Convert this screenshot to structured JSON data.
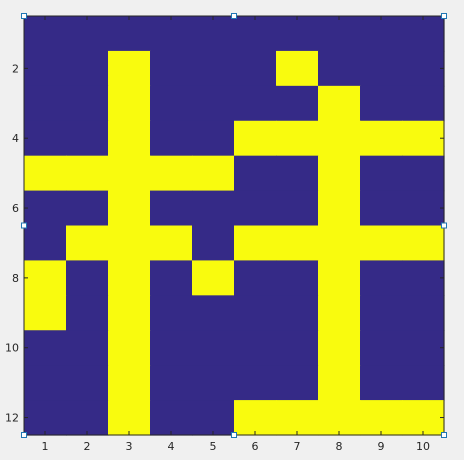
{
  "chart_data": {
    "type": "heatmap",
    "x": [
      1,
      2,
      3,
      4,
      5,
      6,
      7,
      8,
      9,
      10
    ],
    "y": [
      1,
      2,
      3,
      4,
      5,
      6,
      7,
      8,
      9,
      10,
      11,
      12
    ],
    "xlim": [
      0.5,
      10.5
    ],
    "ylim": [
      0.5,
      12.5
    ],
    "y_direction": "reverse",
    "x_ticks": [
      "1",
      "2",
      "3",
      "4",
      "5",
      "6",
      "7",
      "8",
      "9",
      "10"
    ],
    "y_ticks": [
      "2",
      "4",
      "6",
      "8",
      "10",
      "12"
    ],
    "colors": {
      "0": "#352a87",
      "1": "#f9fb0e",
      "axis": "#262626",
      "handle": "#1f77b4"
    },
    "grid": false,
    "values": [
      [
        0,
        0,
        0,
        0,
        0,
        0,
        0,
        0,
        0,
        0
      ],
      [
        0,
        0,
        1,
        0,
        0,
        0,
        1,
        0,
        0,
        0
      ],
      [
        0,
        0,
        1,
        0,
        0,
        0,
        0,
        1,
        0,
        0
      ],
      [
        0,
        0,
        1,
        0,
        0,
        1,
        1,
        1,
        1,
        1
      ],
      [
        1,
        1,
        1,
        1,
        1,
        0,
        0,
        1,
        0,
        0
      ],
      [
        0,
        0,
        1,
        0,
        0,
        0,
        0,
        1,
        0,
        0
      ],
      [
        0,
        1,
        1,
        1,
        0,
        1,
        1,
        1,
        1,
        1
      ],
      [
        1,
        0,
        1,
        0,
        1,
        0,
        0,
        1,
        0,
        0
      ],
      [
        1,
        0,
        1,
        0,
        0,
        0,
        0,
        1,
        0,
        0
      ],
      [
        0,
        0,
        1,
        0,
        0,
        0,
        0,
        1,
        0,
        0
      ],
      [
        0,
        0,
        1,
        0,
        0,
        0,
        0,
        1,
        0,
        0
      ],
      [
        0,
        0,
        1,
        0,
        0,
        1,
        1,
        1,
        1,
        1
      ]
    ]
  }
}
